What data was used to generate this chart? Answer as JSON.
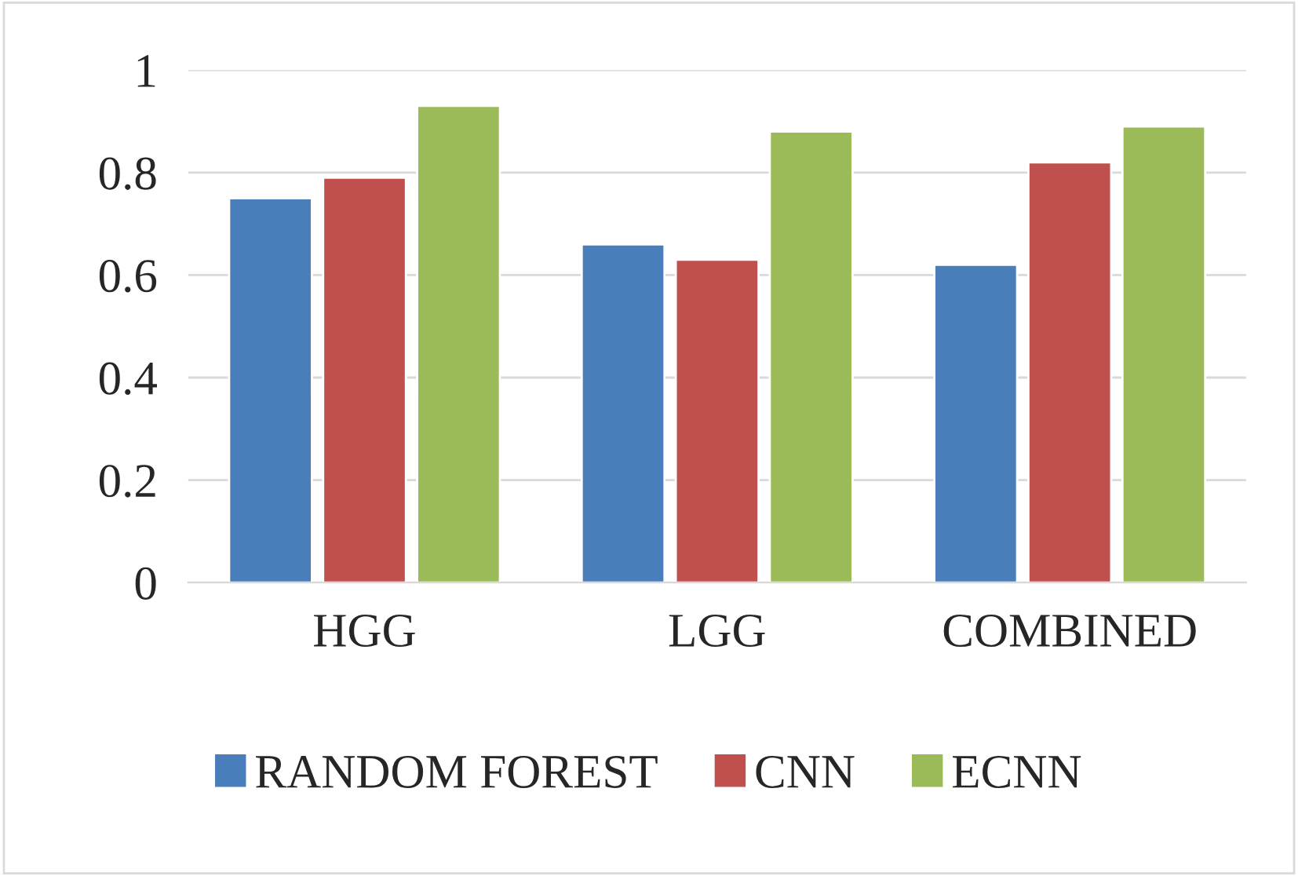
{
  "chart_data": {
    "type": "bar",
    "categories": [
      "HGG",
      "LGG",
      "COMBINED"
    ],
    "series": [
      {
        "name": "RANDOM FOREST",
        "color": "#4a7ebb",
        "values": [
          0.75,
          0.66,
          0.62
        ]
      },
      {
        "name": "CNN",
        "color": "#c0504d",
        "values": [
          0.79,
          0.63,
          0.82
        ]
      },
      {
        "name": "ECNN",
        "color": "#9bbb59",
        "values": [
          0.93,
          0.88,
          0.89
        ]
      }
    ],
    "ylim": [
      0,
      1
    ],
    "yticks": [
      0,
      0.2,
      0.4,
      0.6,
      0.8,
      1
    ],
    "grid": "y",
    "legend": "bottom"
  }
}
